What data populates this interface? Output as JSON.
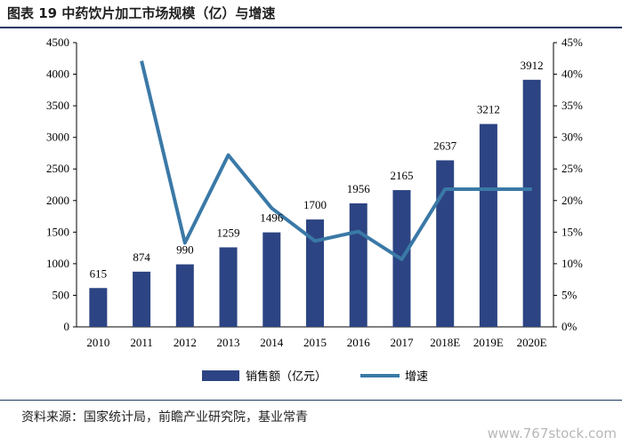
{
  "header": {
    "title": "图表 19 中药饮片加工市场规模（亿）与增速"
  },
  "chart_data": {
    "type": "bar",
    "categories": [
      "2010",
      "2011",
      "2012",
      "2013",
      "2014",
      "2015",
      "2016",
      "2017",
      "2018E",
      "2019E",
      "2020E"
    ],
    "series": [
      {
        "name": "销售额（亿元）",
        "type": "bar",
        "axis": "left",
        "values": [
          615,
          874,
          990,
          1259,
          1496,
          1700,
          1956,
          2165,
          2637,
          3212,
          3912
        ]
      },
      {
        "name": "增速",
        "type": "line",
        "axis": "right",
        "values": [
          null,
          42.1,
          13.3,
          27.2,
          18.8,
          13.6,
          15.1,
          10.7,
          21.8,
          21.8,
          21.8
        ]
      }
    ],
    "y_left_ticks": [
      "0",
      "500",
      "1000",
      "1500",
      "2000",
      "2500",
      "3000",
      "3500",
      "4000",
      "4500"
    ],
    "y_right_ticks": [
      "0%",
      "5%",
      "10%",
      "15%",
      "20%",
      "25%",
      "30%",
      "35%",
      "40%",
      "45%"
    ],
    "ylim_left": [
      0,
      4500
    ],
    "ylim_right": [
      0,
      45
    ],
    "legend_position": "bottom",
    "colors": {
      "bar": "#2c4483",
      "line": "#3a79a7"
    }
  },
  "footer": {
    "source": "资料来源：国家统计局，前瞻产业研究院，基业常青",
    "watermark": "www.767stock.com"
  }
}
